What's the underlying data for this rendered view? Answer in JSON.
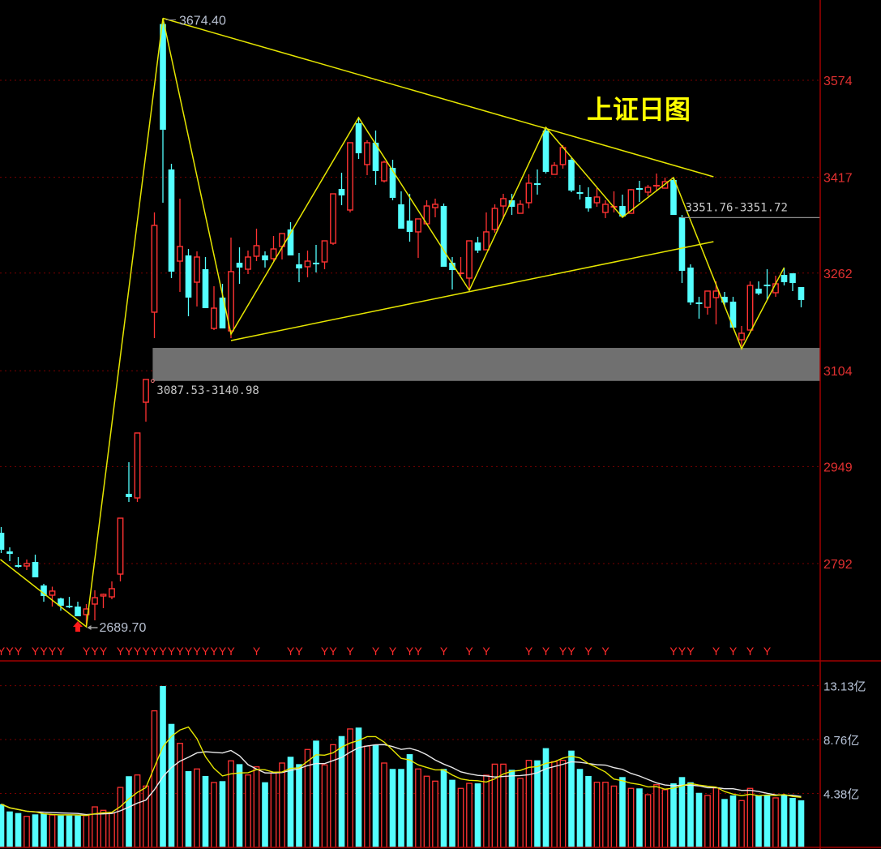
{
  "chart_data": [
    {
      "type": "candlestick",
      "title": "上证日图",
      "y_ticks": [
        3574,
        3417,
        3262,
        3104,
        2949,
        2792
      ],
      "y_tick_labels": [
        "3574",
        "3417",
        "3262",
        "3104",
        "2949",
        "2792"
      ],
      "grid": true,
      "colors": {
        "up": "#ff3232",
        "down": "#54ffff",
        "grid": "#7a0000",
        "trendline": "#e6e600",
        "zone": "#707070",
        "title": "#ffff00"
      },
      "ohlc_format": [
        "open",
        "high",
        "low",
        "close"
      ],
      "ohlc": [
        [
          2841.9,
          2851.1,
          2809.1,
          2814.4
        ],
        [
          2811.7,
          2818.3,
          2796.0,
          2807.8
        ],
        [
          2788.8,
          2802.6,
          2785.5,
          2787.5
        ],
        [
          2788.1,
          2798.6,
          2781.6,
          2792.1
        ],
        [
          2794.7,
          2806.5,
          2769.8,
          2769.8
        ],
        [
          2756.6,
          2759.3,
          2730.4,
          2739.6
        ],
        [
          2740.9,
          2754.7,
          2722.5,
          2747.5
        ],
        [
          2735.6,
          2736.9,
          2716.0,
          2723.8
        ],
        [
          2723.2,
          2738.2,
          2719.9,
          2721.8
        ],
        [
          2722.5,
          2730.4,
          2706.8,
          2706.8
        ],
        [
          2709.4,
          2726.5,
          2689.7,
          2718.6
        ],
        [
          2726.5,
          2748.8,
          2700.2,
          2736.9
        ],
        [
          2739.6,
          2743.5,
          2719.9,
          2742.2
        ],
        [
          2738.2,
          2763.2,
          2734.3,
          2751.4
        ],
        [
          2775.0,
          2865.5,
          2763.2,
          2865.5
        ],
        [
          2904.9,
          2956.1,
          2891.8,
          2899.6
        ],
        [
          2898.3,
          3003.3,
          2891.8,
          3003.3
        ],
        [
          3053.1,
          3089.9,
          3021.7,
          3089.9
        ],
        [
          3198.8,
          3360.2,
          3156.8,
          3339.2
        ],
        [
          3665.0,
          3674.4,
          3375.9,
          3494.0
        ],
        [
          3429.7,
          3438.9,
          3253.9,
          3264.4
        ],
        [
          3281.4,
          3382.5,
          3231.6,
          3305.1
        ],
        [
          3290.6,
          3301.1,
          3192.2,
          3222.4
        ],
        [
          3247.3,
          3297.2,
          3208.0,
          3288.0
        ],
        [
          3268.3,
          3288.0,
          3205.3,
          3205.3
        ],
        [
          3172.5,
          3240.8,
          3169.9,
          3205.3
        ],
        [
          3222.4,
          3244.7,
          3172.5,
          3172.5
        ],
        [
          3168.6,
          3319.5,
          3156.8,
          3264.4
        ],
        [
          3278.8,
          3303.7,
          3244.7,
          3271.0
        ],
        [
          3268.3,
          3298.5,
          3260.4,
          3288.0
        ],
        [
          3289.3,
          3333.9,
          3281.4,
          3306.4
        ],
        [
          3290.6,
          3297.2,
          3271.0,
          3282.7
        ],
        [
          3285.4,
          3322.1,
          3281.4,
          3301.1
        ],
        [
          3305.1,
          3326.0,
          3284.1,
          3326.0
        ],
        [
          3332.6,
          3344.4,
          3290.6,
          3290.6
        ],
        [
          3276.2,
          3294.6,
          3247.3,
          3269.6
        ],
        [
          3272.3,
          3298.5,
          3255.2,
          3281.4
        ],
        [
          3278.2,
          3307.7,
          3263.1,
          3276.9
        ],
        [
          3280.1,
          3314.2,
          3268.3,
          3314.2
        ],
        [
          3310.3,
          3390.3,
          3307.7,
          3390.3
        ],
        [
          3398.2,
          3424.4,
          3371.9,
          3387.7
        ],
        [
          3364.1,
          3473.0,
          3360.2,
          3473.0
        ],
        [
          3504.5,
          3513.7,
          3446.7,
          3455.9
        ],
        [
          3437.6,
          3477.0,
          3420.5,
          3473.0
        ],
        [
          3473.0,
          3492.7,
          3404.8,
          3427.1
        ],
        [
          3411.3,
          3444.1,
          3408.7,
          3441.5
        ],
        [
          3432.3,
          3445.4,
          3379.8,
          3383.8
        ],
        [
          3373.3,
          3394.3,
          3333.9,
          3333.9
        ],
        [
          3347.0,
          3390.3,
          3312.9,
          3328.7
        ],
        [
          3328.7,
          3349.7,
          3286.7,
          3349.7
        ],
        [
          3341.8,
          3379.8,
          3341.8,
          3370.6
        ],
        [
          3368.0,
          3382.5,
          3352.3,
          3373.3
        ],
        [
          3370.6,
          3374.6,
          3272.3,
          3272.3
        ],
        [
          3278.8,
          3288.0,
          3235.5,
          3266.9
        ],
        [
          3261.1,
          3288.0,
          3257.8,
          3262.4
        ],
        [
          3253.9,
          3314.2,
          3234.2,
          3314.2
        ],
        [
          3311.6,
          3320.8,
          3294.6,
          3298.5
        ],
        [
          3299.8,
          3360.2,
          3299.8,
          3328.7
        ],
        [
          3332.6,
          3373.3,
          3327.4,
          3366.7
        ],
        [
          3370.6,
          3390.3,
          3349.7,
          3382.5
        ],
        [
          3379.8,
          3390.3,
          3356.2,
          3369.3
        ],
        [
          3358.8,
          3379.8,
          3358.8,
          3373.3
        ],
        [
          3375.9,
          3421.8,
          3366.7,
          3407.4
        ],
        [
          3406.7,
          3429.7,
          3389.0,
          3405.4
        ],
        [
          3492.7,
          3497.9,
          3423.1,
          3425.8
        ],
        [
          3421.8,
          3441.5,
          3421.8,
          3436.3
        ],
        [
          3437.6,
          3469.1,
          3431.0,
          3465.1
        ],
        [
          3445.4,
          3448.1,
          3393.0,
          3395.6
        ],
        [
          3392.3,
          3404.8,
          3381.1,
          3391.0
        ],
        [
          3385.1,
          3400.8,
          3361.5,
          3366.7
        ],
        [
          3375.9,
          3399.5,
          3369.3,
          3385.1
        ],
        [
          3360.2,
          3379.8,
          3351.0,
          3373.3
        ],
        [
          3368.7,
          3394.3,
          3360.2,
          3370.0
        ],
        [
          3370.6,
          3389.0,
          3352.3,
          3353.6
        ],
        [
          3358.8,
          3398.2,
          3358.8,
          3396.9
        ],
        [
          3398.9,
          3411.3,
          3377.2,
          3397.5
        ],
        [
          3393.0,
          3404.8,
          3386.4,
          3400.8
        ],
        [
          3402.8,
          3423.1,
          3395.6,
          3404.1
        ],
        [
          3399.5,
          3416.6,
          3399.5,
          3410.0
        ],
        [
          3412.6,
          3416.6,
          3356.2,
          3356.2
        ],
        [
          3352.3,
          3356.2,
          3246.0,
          3265.7
        ],
        [
          3271.0,
          3276.2,
          3210.6,
          3214.5
        ],
        [
          3213.9,
          3223.7,
          3188.3,
          3212.6
        ],
        [
          3206.6,
          3232.9,
          3194.8,
          3232.9
        ],
        [
          3222.4,
          3248.6,
          3179.1,
          3232.9
        ],
        [
          3223.7,
          3231.6,
          3209.3,
          3214.5
        ],
        [
          3215.8,
          3223.7,
          3173.8,
          3173.8
        ],
        [
          3154.2,
          3176.5,
          3143.7,
          3164.7
        ],
        [
          3169.9,
          3248.6,
          3169.9,
          3242.1
        ],
        [
          3236.8,
          3248.6,
          3226.3,
          3228.9
        ],
        [
          3242.7,
          3268.3,
          3218.5,
          3241.4
        ],
        [
          3230.3,
          3257.8,
          3223.7,
          3244.7
        ],
        [
          3259.1,
          3271.0,
          3242.1,
          3247.3
        ],
        [
          3261.7,
          3261.7,
          3232.9,
          3246.0
        ],
        [
          3239.4,
          3239.4,
          3206.6,
          3218.5
        ]
      ],
      "annotations": {
        "high_label": "3674.40",
        "high_value": 3674.4,
        "high_index": 19,
        "low_label": "2689.70",
        "low_value": 2689.7,
        "low_index": 10,
        "buy_arrow_index": 9,
        "zone": {
          "label": "3087.53-3140.98",
          "low": 3087.53,
          "high": 3140.98,
          "start_index": 17.8
        },
        "hline": {
          "label": "3351.76-3351.72",
          "value": 3351.76,
          "start_index": 79.9
        },
        "zigzag": [
          [
            -0.1,
            2798.6
          ],
          [
            10,
            2689.7
          ],
          [
            19,
            3674.4
          ],
          [
            27,
            3163.3
          ],
          [
            42,
            3513.7
          ],
          [
            55,
            3234.2
          ],
          [
            64,
            3497.9
          ],
          [
            73,
            3352.3
          ],
          [
            79,
            3416.6
          ],
          [
            87,
            3139.7
          ],
          [
            92,
            3271.0
          ]
        ],
        "triangle_upper": [
          [
            19,
            3674.4
          ],
          [
            83.7,
            3417.9
          ]
        ],
        "triangle_lower": [
          [
            27,
            3152.9
          ],
          [
            83.7,
            3312.9
          ]
        ],
        "signal_marker": "Y",
        "signal_indices": [
          0,
          1,
          2,
          4,
          5,
          6,
          7,
          10,
          11,
          12,
          14,
          15,
          16,
          17,
          18,
          19,
          20,
          21,
          22,
          23,
          24,
          25,
          26,
          27,
          30,
          34,
          35,
          38,
          39,
          41,
          44,
          46,
          48,
          49,
          52,
          55,
          57,
          62,
          64,
          66,
          67,
          69,
          71,
          79,
          80,
          81,
          84,
          86,
          88,
          90
        ]
      }
    },
    {
      "type": "bar",
      "unit": "亿",
      "y_ticks": [
        13.13,
        8.76,
        4.38
      ],
      "y_tick_labels": [
        "13.13亿",
        "8.76亿",
        "4.38亿"
      ],
      "grid": true,
      "colors": {
        "ma_short": "#e6e600",
        "ma_long": "#e8e8e8"
      },
      "moving_averages": [
        5,
        10
      ],
      "values": [
        3.51,
        2.92,
        2.79,
        2.52,
        2.68,
        2.75,
        2.63,
        2.59,
        2.59,
        2.59,
        2.59,
        3.29,
        3.01,
        2.79,
        4.87,
        5.78,
        5.88,
        4.98,
        11.09,
        13.11,
        10.03,
        8.45,
        6.19,
        6.37,
        5.8,
        5.27,
        5.38,
        7.03,
        6.76,
        5.88,
        6.54,
        5.29,
        6.04,
        6.85,
        7.36,
        6.76,
        7.95,
        8.67,
        6.7,
        8.34,
        9.04,
        9.62,
        9.73,
        8.23,
        8.34,
        6.85,
        6.37,
        6.37,
        7.57,
        6.37,
        5.78,
        5.38,
        6.37,
        5.49,
        4.79,
        5.2,
        5.2,
        5.86,
        6.76,
        6.76,
        6.3,
        5.6,
        7.07,
        7.07,
        8.06,
        6.96,
        7.07,
        7.86,
        6.37,
        5.8,
        5.29,
        5.29,
        4.98,
        5.71,
        4.79,
        4.79,
        4.28,
        5.09,
        4.68,
        5.2,
        5.71,
        5.29,
        4.43,
        4.22,
        4.83,
        3.93,
        4.22,
        3.8,
        4.79,
        4.22,
        4.22,
        4.02,
        4.22,
        4.02,
        3.82
      ]
    }
  ]
}
